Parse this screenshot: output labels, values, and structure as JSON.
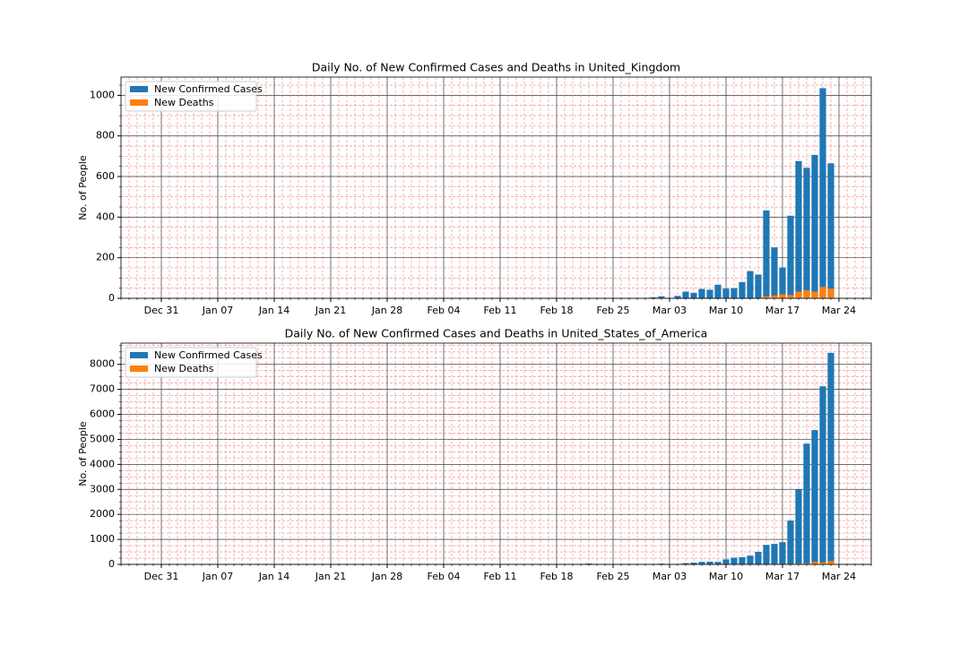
{
  "chart_data": [
    {
      "type": "bar",
      "title": "Daily No. of New Confirmed Cases and Deaths in United_Kingdom",
      "ylabel": "No. of People",
      "x": [
        "Mar 01",
        "Mar 02",
        "Mar 03",
        "Mar 04",
        "Mar 05",
        "Mar 06",
        "Mar 07",
        "Mar 08",
        "Mar 09",
        "Mar 10",
        "Mar 11",
        "Mar 12",
        "Mar 13",
        "Mar 14",
        "Mar 15",
        "Mar 16",
        "Mar 17",
        "Mar 18",
        "Mar 19",
        "Mar 20",
        "Mar 21",
        "Mar 22",
        "Mar 23"
      ],
      "series": [
        {
          "name": "New Confirmed Cases",
          "color": "#1f77b4",
          "values": [
            5,
            10,
            0,
            12,
            33,
            27,
            46,
            42,
            67,
            48,
            50,
            80,
            134,
            117,
            433,
            251,
            152,
            407,
            676,
            643,
            706,
            1035,
            665
          ]
        },
        {
          "name": "New Deaths",
          "color": "#ff7f0e",
          "values": [
            0,
            0,
            0,
            0,
            0,
            0,
            0,
            0,
            0,
            0,
            0,
            0,
            0,
            1,
            10,
            14,
            20,
            16,
            33,
            40,
            33,
            56,
            48
          ]
        }
      ],
      "xlim": [
        "Dec 26",
        "Mar 28"
      ],
      "xticks": [
        "Dec 31",
        "Jan 07",
        "Jan 14",
        "Jan 21",
        "Jan 28",
        "Feb 04",
        "Feb 11",
        "Feb 18",
        "Feb 25",
        "Mar 03",
        "Mar 10",
        "Mar 17",
        "Mar 24"
      ],
      "ylim": [
        0,
        1090
      ],
      "yticks": [
        0,
        200,
        400,
        600,
        800,
        1000
      ],
      "grid": true,
      "minor_grid": true,
      "legend": "upper left"
    },
    {
      "type": "bar",
      "title": "Daily No. of New Confirmed Cases and Deaths in United_States_of_America",
      "ylabel": "No. of People",
      "x": [
        "Feb 22",
        "Feb 23",
        "Feb 24",
        "Feb 25",
        "Feb 26",
        "Feb 27",
        "Feb 28",
        "Feb 29",
        "Mar 01",
        "Mar 02",
        "Mar 03",
        "Mar 04",
        "Mar 05",
        "Mar 06",
        "Mar 07",
        "Mar 08",
        "Mar 09",
        "Mar 10",
        "Mar 11",
        "Mar 12",
        "Mar 13",
        "Mar 14",
        "Mar 15",
        "Mar 16",
        "Mar 17",
        "Mar 18",
        "Mar 19",
        "Mar 20",
        "Mar 21",
        "Mar 22",
        "Mar 23"
      ],
      "series": [
        {
          "name": "New Confirmed Cases",
          "color": "#1f77b4",
          "values": [
            35,
            0,
            0,
            18,
            0,
            0,
            0,
            0,
            0,
            30,
            0,
            20,
            50,
            70,
            100,
            110,
            100,
            200,
            270,
            290,
            350,
            500,
            780,
            820,
            890,
            1750,
            2990,
            4830,
            5370,
            7120,
            8460
          ]
        },
        {
          "name": "New Deaths",
          "color": "#ff7f0e",
          "values": [
            0,
            0,
            0,
            0,
            0,
            0,
            0,
            0,
            0,
            0,
            0,
            0,
            0,
            0,
            0,
            0,
            0,
            0,
            0,
            0,
            0,
            0,
            10,
            20,
            15,
            20,
            30,
            40,
            100,
            80,
            130
          ]
        }
      ],
      "xlim": [
        "Dec 26",
        "Mar 28"
      ],
      "xticks": [
        "Dec 31",
        "Jan 07",
        "Jan 14",
        "Jan 21",
        "Jan 28",
        "Feb 04",
        "Feb 11",
        "Feb 18",
        "Feb 25",
        "Mar 03",
        "Mar 10",
        "Mar 17",
        "Mar 24"
      ],
      "ylim": [
        0,
        8850
      ],
      "yticks": [
        0,
        1000,
        2000,
        3000,
        4000,
        5000,
        6000,
        7000,
        8000
      ],
      "grid": true,
      "minor_grid": true,
      "legend": "upper left"
    }
  ]
}
